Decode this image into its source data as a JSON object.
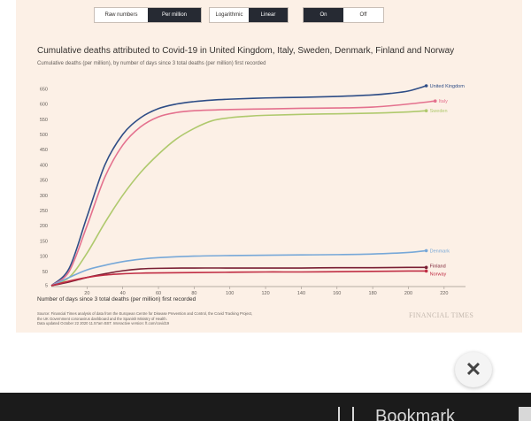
{
  "controls": {
    "scale_group_a": {
      "options": [
        "Raw numbers",
        "Per million"
      ],
      "active": "Per million"
    },
    "scale_group_b": {
      "options": [
        "Logarithmic",
        "Linear"
      ],
      "active": "Linear"
    },
    "toggle_group": {
      "options": [
        "On",
        "Off"
      ],
      "active": "On"
    }
  },
  "chart_data": {
    "type": "line",
    "title": "Cumulative deaths attributed to Covid-19 in United Kingdom, Italy, Sweden, Denmark, Finland and Norway",
    "subtitle": "Cumulative deaths (per million), by number of days since 3 total deaths (per million) first recorded",
    "xlabel": "Number of days since 3 total deaths (per million) first recorded",
    "ylabel": "",
    "xlim": [
      0,
      230
    ],
    "ylim": [
      0,
      660
    ],
    "xticks": [
      20,
      40,
      60,
      80,
      100,
      120,
      140,
      160,
      180,
      200,
      220
    ],
    "yticks": [
      5,
      50,
      100,
      150,
      200,
      250,
      300,
      350,
      400,
      450,
      500,
      550,
      600,
      650
    ],
    "grid": false,
    "series": [
      {
        "name": "United Kingdom",
        "color": "#2e4d86",
        "x": [
          0,
          10,
          20,
          30,
          40,
          50,
          60,
          70,
          80,
          90,
          100,
          120,
          140,
          160,
          180,
          190,
          200,
          210
        ],
        "y": [
          3,
          60,
          230,
          400,
          500,
          555,
          585,
          600,
          608,
          613,
          616,
          620,
          622,
          625,
          630,
          635,
          643,
          660
        ]
      },
      {
        "name": "Italy",
        "color": "#e4718e",
        "x": [
          0,
          10,
          20,
          30,
          40,
          50,
          60,
          70,
          80,
          100,
          120,
          140,
          160,
          180,
          200,
          215
        ],
        "y": [
          3,
          50,
          200,
          360,
          465,
          525,
          558,
          572,
          578,
          582,
          584,
          586,
          587,
          590,
          600,
          610
        ]
      },
      {
        "name": "Sweden",
        "color": "#afc96d",
        "x": [
          0,
          10,
          20,
          30,
          40,
          50,
          60,
          70,
          80,
          90,
          100,
          110,
          120,
          140,
          160,
          180,
          200,
          210
        ],
        "y": [
          3,
          30,
          110,
          210,
          300,
          375,
          435,
          485,
          520,
          545,
          555,
          560,
          563,
          566,
          568,
          570,
          574,
          578
        ]
      },
      {
        "name": "Denmark",
        "color": "#77a8d8",
        "x": [
          0,
          10,
          20,
          30,
          40,
          50,
          60,
          80,
          100,
          120,
          140,
          160,
          180,
          200,
          210
        ],
        "y": [
          3,
          30,
          55,
          70,
          82,
          90,
          95,
          100,
          102,
          103,
          104,
          105,
          107,
          112,
          118
        ]
      },
      {
        "name": "Finland",
        "color": "#7a1f34",
        "x": [
          0,
          10,
          20,
          30,
          40,
          50,
          60,
          80,
          100,
          120,
          140,
          160,
          180,
          200,
          210
        ],
        "y": [
          3,
          15,
          30,
          42,
          52,
          58,
          60,
          61,
          61,
          61,
          61,
          62,
          62,
          63,
          63
        ]
      },
      {
        "name": "Norway",
        "color": "#c02d44",
        "x": [
          0,
          10,
          20,
          30,
          40,
          50,
          60,
          80,
          100,
          120,
          140,
          160,
          180,
          200,
          210
        ],
        "y": [
          3,
          18,
          30,
          38,
          42,
          44,
          45,
          46,
          47,
          48,
          48,
          49,
          50,
          51,
          51
        ]
      }
    ]
  },
  "source": {
    "line1": "Source: Financial Times analysis of data from the European Centre for Disease Prevention and Control, the Covid Tracking Project,",
    "line2": "the UK Government coronavirus dashboard and the Spanish Ministry of Health.",
    "line3": "Data updated October 22 2020 11.57am BST. Interactive version: ft.com/covid19"
  },
  "brand": "FINANCIAL TIMES",
  "close_icon": "close-icon",
  "bottom_text": "Bookmark"
}
